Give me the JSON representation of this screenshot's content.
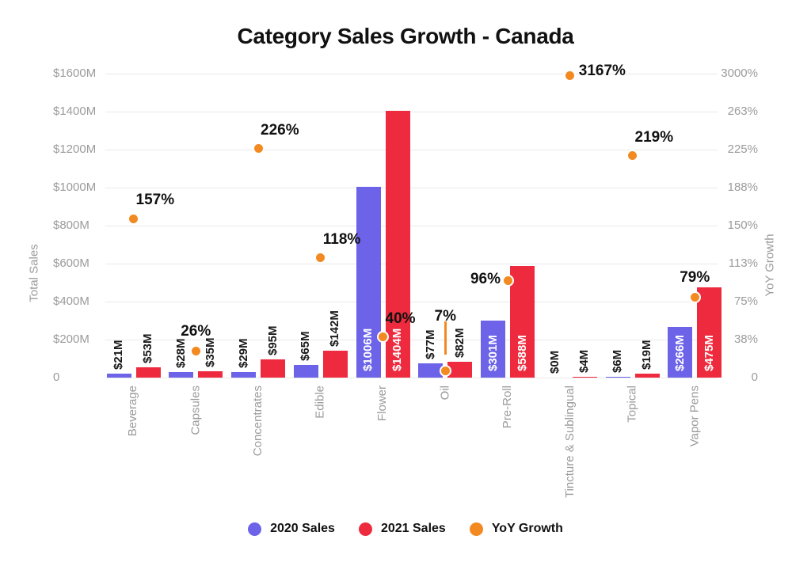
{
  "title": "Category Sales Growth - Canada",
  "axes": {
    "left_title": "Total Sales",
    "right_title": "YoY Growth",
    "left_ticks": [
      "$1600M",
      "$1400M",
      "$1200M",
      "$1000M",
      "$800M",
      "$600M",
      "$400M",
      "$200M",
      "0"
    ],
    "right_ticks": [
      "3000%",
      "263%",
      "225%",
      "188%",
      "150%",
      "113%",
      "75%",
      "38%",
      "0"
    ]
  },
  "colors": {
    "sales_2020": "#6c63e8",
    "sales_2021": "#ee2b3e",
    "yoy_growth": "#f28a21",
    "grid": "#e9e9e9",
    "axis_text": "#9b9b9b",
    "label_text": "#111111"
  },
  "legend": [
    {
      "label": "2020 Sales",
      "color": "#6c63e8"
    },
    {
      "label": "2021 Sales",
      "color": "#ee2b3e"
    },
    {
      "label": "YoY Growth",
      "color": "#f28a21"
    }
  ],
  "chart_data": {
    "type": "bar",
    "subtype": "grouped-bar-with-scatter-overlay",
    "title": "Category Sales Growth - Canada",
    "xlabel": "",
    "ylabel_left": "Total Sales",
    "ylabel_right": "YoY Growth",
    "left_axis_range_millions": [
      0,
      1600
    ],
    "right_axis_tick_percents": [
      0,
      38,
      75,
      113,
      150,
      188,
      225,
      263,
      3000
    ],
    "grid": true,
    "legend_position": "bottom",
    "categories": [
      "Beverage",
      "Capsules",
      "Concentrates",
      "Edible",
      "Flower",
      "Oil",
      "Pre-Roll",
      "Tincture & Sublingual",
      "Topical",
      "Vapor Pens"
    ],
    "series": [
      {
        "name": "2020 Sales",
        "type": "bar",
        "axis": "left",
        "unit": "$M",
        "color": "#6c63e8",
        "values": [
          21,
          28,
          29,
          65,
          1006,
          77,
          301,
          0,
          6,
          266
        ],
        "labels": [
          "$21M",
          "$28M",
          "$29M",
          "$65M",
          "$1006M",
          "$77M",
          "$301M",
          "$0M",
          "$6M",
          "$266M"
        ]
      },
      {
        "name": "2021 Sales",
        "type": "bar",
        "axis": "left",
        "unit": "$M",
        "color": "#ee2b3e",
        "values": [
          53,
          35,
          95,
          142,
          1404,
          82,
          588,
          4,
          19,
          475
        ],
        "labels": [
          "$53M",
          "$35M",
          "$95M",
          "$142M",
          "$1404M",
          "$82M",
          "$588M",
          "$4M",
          "$19M",
          "$475M"
        ]
      },
      {
        "name": "YoY Growth",
        "type": "scatter",
        "axis": "right",
        "unit": "%",
        "color": "#f28a21",
        "values": [
          157,
          26,
          226,
          118,
          40,
          7,
          96,
          3167,
          219,
          79
        ],
        "labels": [
          "157%",
          "26%",
          "226%",
          "118%",
          "40%",
          "7%",
          "96%",
          "3167%",
          "219%",
          "79%"
        ],
        "label_placement": [
          "above-right",
          "above",
          "above-right",
          "above-right",
          "above-right",
          "leader",
          "left",
          "right",
          "above-right",
          "above"
        ]
      }
    ]
  }
}
